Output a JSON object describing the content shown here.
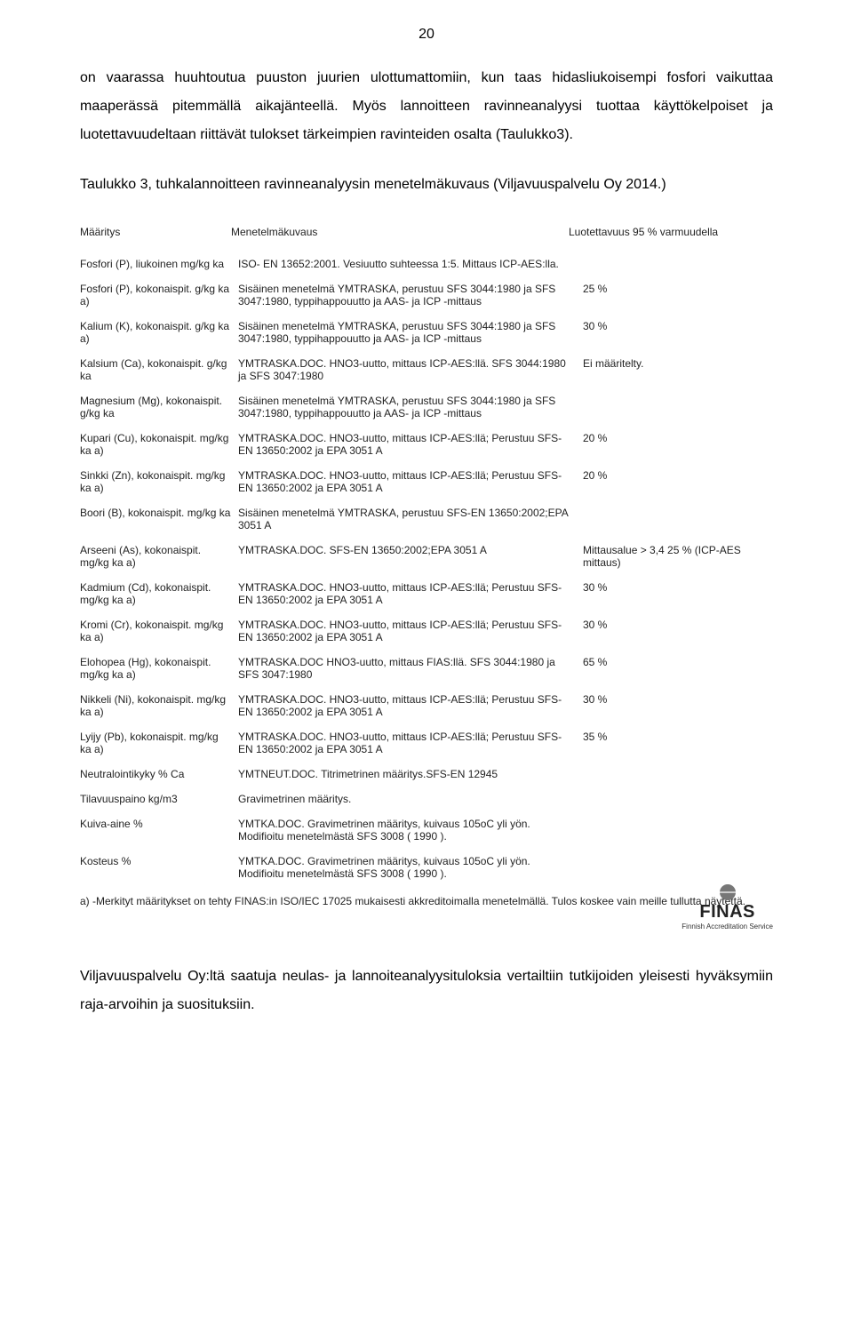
{
  "pageNumber": "20",
  "para1": "on vaarassa huuhtoutua puuston juurien ulottumattomiin, kun taas hidasliukoisempi fosfori vaikuttaa maaperässä pitemmällä aikajänteellä. Myös lannoitteen ravinneanalyysi tuottaa käyttökelpoiset ja luotettavuudeltaan riittävät tulokset tärkeimpien ravinteiden osalta (Taulukko3).",
  "para2": "Taulukko 3, tuhkalannoitteen ravinneanalyysin menetelmäkuvaus (Viljavuuspalvelu Oy 2014.)",
  "table": {
    "headers": {
      "c1": "Määritys",
      "c2": "Menetelmäkuvaus",
      "c3": "Luotettavuus 95 % varmuudella"
    },
    "rows": [
      {
        "c1": "Fosfori (P), liukoinen mg/kg ka",
        "c2": "ISO- EN 13652:2001. Vesiuutto suhteessa 1:5. Mittaus ICP-AES:lla.",
        "c3": ""
      },
      {
        "c1": "Fosfori (P), kokonaispit. g/kg ka a)",
        "c2": "Sisäinen menetelmä YMTRASKA, perustuu SFS 3044:1980 ja SFS 3047:1980, typpihappouutto ja AAS- ja ICP -mittaus",
        "c3": "25 %"
      },
      {
        "c1": "Kalium (K), kokonaispit. g/kg ka a)",
        "c2": "Sisäinen menetelmä YMTRASKA, perustuu SFS 3044:1980 ja SFS 3047:1980, typpihappouutto ja AAS- ja ICP -mittaus",
        "c3": "30 %"
      },
      {
        "c1": "Kalsium (Ca), kokonaispit. g/kg ka",
        "c2": "YMTRASKA.DOC. HNO3-uutto, mittaus ICP-AES:llä. SFS 3044:1980 ja SFS 3047:1980",
        "c3": "Ei määritelty."
      },
      {
        "c1": "Magnesium (Mg), kokonaispit. g/kg ka",
        "c2": "Sisäinen menetelmä YMTRASKA, perustuu SFS 3044:1980 ja SFS 3047:1980, typpihappouutto ja AAS- ja ICP -mittaus",
        "c3": ""
      },
      {
        "c1": "Kupari (Cu), kokonaispit. mg/kg ka a)",
        "c2": "YMTRASKA.DOC. HNO3-uutto, mittaus ICP-AES:llä; Perustuu SFS-EN 13650:2002 ja EPA 3051 A",
        "c3": "20 %"
      },
      {
        "c1": "Sinkki (Zn), kokonaispit. mg/kg ka a)",
        "c2": "YMTRASKA.DOC. HNO3-uutto, mittaus ICP-AES:llä; Perustuu SFS-EN 13650:2002 ja EPA 3051 A",
        "c3": "20 %"
      },
      {
        "c1": "Boori (B), kokonaispit. mg/kg ka",
        "c2": "Sisäinen menetelmä YMTRASKA, perustuu SFS-EN 13650:2002;EPA 3051 A",
        "c3": ""
      },
      {
        "c1": "Arseeni (As), kokonaispit. mg/kg ka a)",
        "c2": "YMTRASKA.DOC. SFS-EN 13650:2002;EPA 3051 A",
        "c3": "Mittausalue > 3,4 25 % (ICP-AES mittaus)"
      },
      {
        "c1": "Kadmium (Cd), kokonaispit. mg/kg ka a)",
        "c2": "YMTRASKA.DOC. HNO3-uutto, mittaus ICP-AES:llä; Perustuu SFS-EN 13650:2002 ja EPA 3051 A",
        "c3": "30 %"
      },
      {
        "c1": "Kromi (Cr), kokonaispit. mg/kg ka a)",
        "c2": "YMTRASKA.DOC. HNO3-uutto, mittaus ICP-AES:llä; Perustuu SFS-EN 13650:2002 ja EPA 3051 A",
        "c3": "30 %"
      },
      {
        "c1": "Elohopea (Hg), kokonaispit. mg/kg ka a)",
        "c2": "YMTRASKA.DOC HNO3-uutto, mittaus FIAS:llä. SFS 3044:1980 ja SFS 3047:1980",
        "c3": "65 %"
      },
      {
        "c1": "Nikkeli (Ni), kokonaispit. mg/kg ka a)",
        "c2": "YMTRASKA.DOC. HNO3-uutto, mittaus ICP-AES:llä; Perustuu SFS-EN 13650:2002 ja EPA 3051 A",
        "c3": "30 %"
      },
      {
        "c1": "Lyijy (Pb), kokonaispit. mg/kg ka a)",
        "c2": "YMTRASKA.DOC. HNO3-uutto, mittaus ICP-AES:llä; Perustuu SFS-EN 13650:2002 ja EPA 3051 A",
        "c3": "35 %"
      },
      {
        "c1": "Neutralointikyky % Ca",
        "c2": "YMTNEUT.DOC. Titrimetrinen määritys.SFS-EN 12945",
        "c3": ""
      },
      {
        "c1": "Tilavuuspaino kg/m3",
        "c2": "Gravimetrinen määritys.",
        "c3": ""
      },
      {
        "c1": "Kuiva-aine %",
        "c2": "YMTKA.DOC.  Gravimetrinen määritys, kuivaus 105oC yli yön. Modifioitu menetelmästä SFS 3008 ( 1990 ).",
        "c3": ""
      },
      {
        "c1": "Kosteus %",
        "c2": "YMTKA.DOC.  Gravimetrinen määritys, kuivaus 105oC yli yön. Modifioitu menetelmästä SFS 3008 ( 1990 ).",
        "c3": ""
      }
    ],
    "footnote": "a) -Merkityt määritykset on tehty FINAS:in ISO/IEC 17025 mukaisesti akkreditoimalla menetelmällä. Tulos koskee vain meille tullutta näytettä."
  },
  "logo": {
    "name": "FINAS",
    "sub": "Finnish Accreditation Service"
  },
  "para3": "Viljavuuspalvelu Oy:ltä saatuja neulas- ja lannoiteanalyysituloksia vertailtiin tutkijoiden yleisesti hyväksymiin raja-arvoihin ja suosituksiin."
}
